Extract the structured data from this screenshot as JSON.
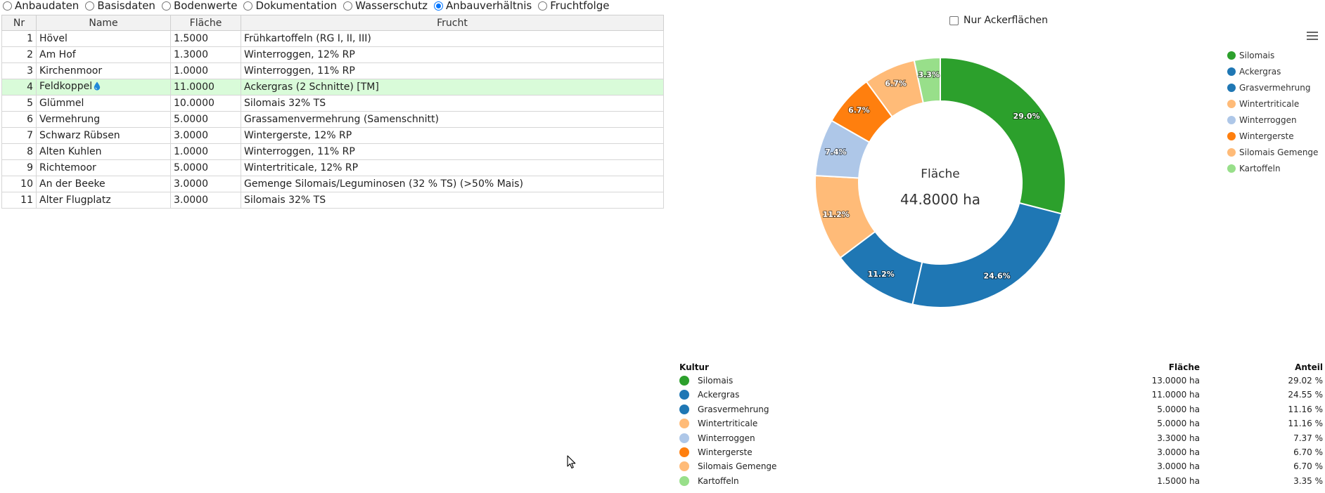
{
  "radio_options": [
    {
      "label": "Anbaudaten",
      "checked": false
    },
    {
      "label": "Basisdaten",
      "checked": false
    },
    {
      "label": "Bodenwerte",
      "checked": false
    },
    {
      "label": "Dokumentation",
      "checked": false
    },
    {
      "label": "Wasserschutz",
      "checked": false
    },
    {
      "label": "Anbauverhältnis",
      "checked": true
    },
    {
      "label": "Fruchtfolge",
      "checked": false
    }
  ],
  "table": {
    "headers": {
      "nr": "Nr",
      "name": "Name",
      "flaeche": "Fläche",
      "frucht": "Frucht"
    },
    "rows": [
      {
        "nr": "1",
        "name": "Hövel",
        "flaeche": "1.5000",
        "frucht": "Frühkartoffeln (RG I, II, III)",
        "selected": false,
        "water_icon": false
      },
      {
        "nr": "2",
        "name": "Am Hof",
        "flaeche": "1.3000",
        "frucht": "Winterroggen, 12% RP",
        "selected": false,
        "water_icon": false
      },
      {
        "nr": "3",
        "name": "Kirchenmoor",
        "flaeche": "1.0000",
        "frucht": "Winterroggen, 11% RP",
        "selected": false,
        "water_icon": false
      },
      {
        "nr": "4",
        "name": "Feldkoppel",
        "flaeche": "11.0000",
        "frucht": "Ackergras (2 Schnitte) [TM]",
        "selected": true,
        "water_icon": true
      },
      {
        "nr": "5",
        "name": "Glümmel",
        "flaeche": "10.0000",
        "frucht": "Silomais 32% TS",
        "selected": false,
        "water_icon": false
      },
      {
        "nr": "6",
        "name": "Vermehrung",
        "flaeche": "5.0000",
        "frucht": "Grassamenvermehrung (Samenschnitt)",
        "selected": false,
        "water_icon": false
      },
      {
        "nr": "7",
        "name": "Schwarz Rübsen",
        "flaeche": "3.0000",
        "frucht": "Wintergerste, 12% RP",
        "selected": false,
        "water_icon": false
      },
      {
        "nr": "8",
        "name": "Alten Kuhlen",
        "flaeche": "1.0000",
        "frucht": "Winterroggen, 11% RP",
        "selected": false,
        "water_icon": false
      },
      {
        "nr": "9",
        "name": "Richtemoor",
        "flaeche": "5.0000",
        "frucht": "Wintertriticale, 12% RP",
        "selected": false,
        "water_icon": false
      },
      {
        "nr": "10",
        "name": "An der Beeke",
        "flaeche": "3.0000",
        "frucht": "Gemenge Silomais/Leguminosen (32 % TS) (>50% Mais)",
        "selected": false,
        "water_icon": false
      },
      {
        "nr": "11",
        "name": "Alter Flugplatz",
        "flaeche": "3.0000",
        "frucht": "Silomais 32% TS",
        "selected": false,
        "water_icon": false
      }
    ]
  },
  "filter": {
    "nur_ackerflaechen_label": "Nur Ackerflächen",
    "checked": false
  },
  "chart_data": {
    "type": "pie",
    "variant": "donut",
    "center_title": "Fläche",
    "center_value": "44.8000 ha",
    "legend_position": "right",
    "slices": [
      {
        "name": "Silomais",
        "value": 13.0,
        "label": "29.0%",
        "color": "#2ca02c"
      },
      {
        "name": "Ackergras",
        "value": 11.0,
        "label": "24.6%",
        "color": "#1f77b4"
      },
      {
        "name": "Grasvermehrung",
        "value": 5.0,
        "label": "11.2%",
        "color": "#1f77b4"
      },
      {
        "name": "Wintertriticale",
        "value": 5.0,
        "label": "11.2%",
        "color": "#ffbb78"
      },
      {
        "name": "Winterroggen",
        "value": 3.3,
        "label": "7.4%",
        "color": "#aec7e8"
      },
      {
        "name": "Wintergerste",
        "value": 3.0,
        "label": "6.7%",
        "color": "#ff7f0e"
      },
      {
        "name": "Silomais Gemenge",
        "value": 3.0,
        "label": "6.7%",
        "color": "#ffbb78"
      },
      {
        "name": "Kartoffeln",
        "value": 1.5,
        "label": "3.3%",
        "color": "#98df8a"
      }
    ]
  },
  "summary": {
    "headers": {
      "kultur": "Kultur",
      "flaeche": "Fläche",
      "anteil": "Anteil"
    },
    "rows": [
      {
        "kultur": "Silomais",
        "flaeche": "13.0000 ha",
        "anteil": "29.02 %",
        "color": "#2ca02c"
      },
      {
        "kultur": "Ackergras",
        "flaeche": "11.0000 ha",
        "anteil": "24.55 %",
        "color": "#1f77b4"
      },
      {
        "kultur": "Grasvermehrung",
        "flaeche": "5.0000 ha",
        "anteil": "11.16 %",
        "color": "#1f77b4"
      },
      {
        "kultur": "Wintertriticale",
        "flaeche": "5.0000 ha",
        "anteil": "11.16 %",
        "color": "#ffbb78"
      },
      {
        "kultur": "Winterroggen",
        "flaeche": "3.3000 ha",
        "anteil": "7.37 %",
        "color": "#aec7e8"
      },
      {
        "kultur": "Wintergerste",
        "flaeche": "3.0000 ha",
        "anteil": "6.70 %",
        "color": "#ff7f0e"
      },
      {
        "kultur": "Silomais Gemenge",
        "flaeche": "3.0000 ha",
        "anteil": "6.70 %",
        "color": "#ffbb78"
      },
      {
        "kultur": "Kartoffeln",
        "flaeche": "1.5000 ha",
        "anteil": "3.35 %",
        "color": "#98df8a"
      }
    ]
  },
  "icons": {
    "water": "water-drop-icon",
    "menu": "hamburger-menu-icon",
    "cursor": "mouse-cursor-icon"
  }
}
